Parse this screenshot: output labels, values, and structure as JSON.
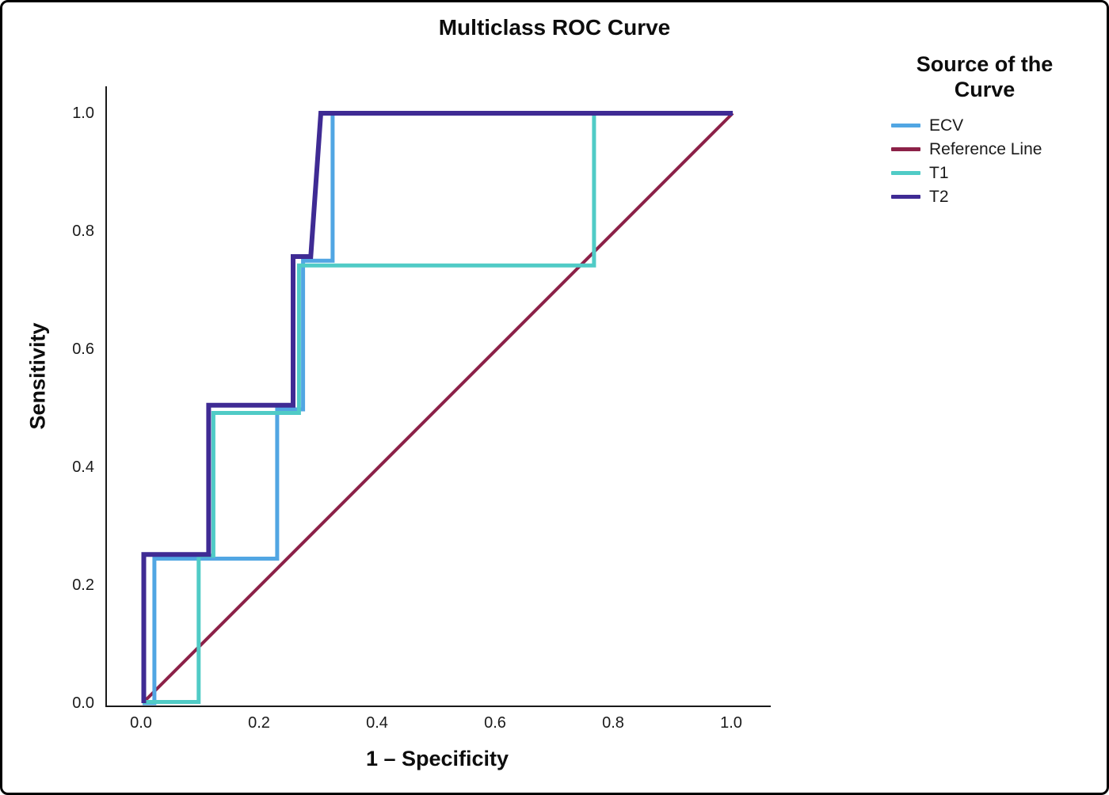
{
  "chart_data": {
    "type": "line",
    "subtype": "roc-step-curves",
    "title": "Multiclass ROC Curve",
    "xlabel": "1 – Specificity",
    "ylabel": "Sensitivity",
    "xlim": [
      0,
      1
    ],
    "ylim": [
      0,
      1
    ],
    "x_ticks": [
      0.0,
      0.2,
      0.4,
      0.6,
      0.8,
      1.0
    ],
    "y_ticks": [
      0.0,
      0.2,
      0.4,
      0.6,
      0.8,
      1.0
    ],
    "grid": false,
    "legend_title": "Source of the Curve",
    "legend_position": "right",
    "colors": {
      "ecv": "#51a6e3",
      "reference_line": "#8c2148",
      "t1": "#50cbc6",
      "t2": "#3f2b94"
    },
    "series": [
      {
        "name": "reference-line",
        "label": "Reference Line",
        "color": "#8c2148",
        "stroke_width": 4,
        "legend_index": 1,
        "points": [
          [
            0,
            0
          ],
          [
            1,
            1
          ]
        ]
      },
      {
        "name": "ecv",
        "label": "ECV",
        "color": "#51a6e3",
        "stroke_width": 5,
        "legend_index": 0,
        "points": [
          [
            0,
            0
          ],
          [
            0.02,
            0
          ],
          [
            0.02,
            0.245
          ],
          [
            0.228,
            0.245
          ],
          [
            0.228,
            0.498
          ],
          [
            0.272,
            0.498
          ],
          [
            0.272,
            0.75
          ],
          [
            0.322,
            0.75
          ],
          [
            0.322,
            1
          ],
          [
            1,
            1
          ]
        ]
      },
      {
        "name": "t1",
        "label": "T1",
        "color": "#50cbc6",
        "stroke_width": 5,
        "legend_index": 2,
        "points": [
          [
            0,
            0.002
          ],
          [
            0.095,
            0.002
          ],
          [
            0.095,
            0.25
          ],
          [
            0.12,
            0.25
          ],
          [
            0.12,
            0.492
          ],
          [
            0.265,
            0.492
          ],
          [
            0.265,
            0.742
          ],
          [
            0.765,
            0.742
          ],
          [
            0.765,
            1
          ],
          [
            1,
            1
          ]
        ]
      },
      {
        "name": "t2",
        "label": "T2",
        "color": "#3f2b94",
        "stroke_width": 6,
        "legend_index": 3,
        "points": [
          [
            0.002,
            0
          ],
          [
            0.002,
            0.252
          ],
          [
            0.112,
            0.252
          ],
          [
            0.112,
            0.505
          ],
          [
            0.255,
            0.505
          ],
          [
            0.255,
            0.757
          ],
          [
            0.285,
            0.757
          ],
          [
            0.302,
            1
          ],
          [
            1,
            1
          ]
        ]
      }
    ]
  }
}
